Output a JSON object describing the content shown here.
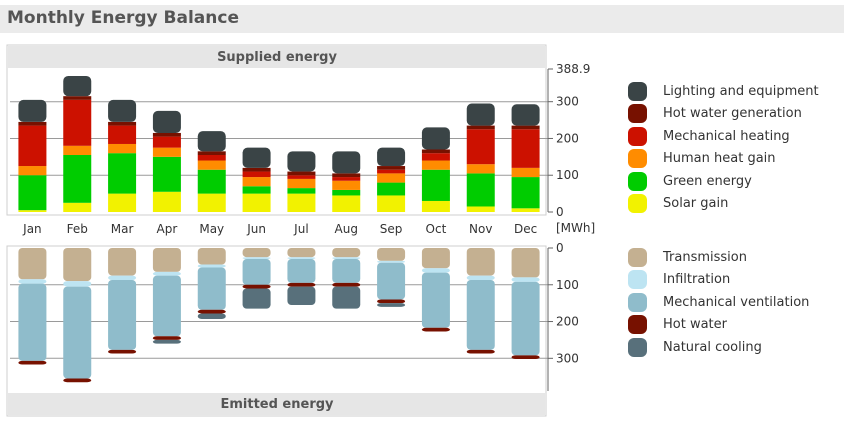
{
  "header": {
    "title": "Monthly Energy Balance"
  },
  "chart_data": {
    "type": "bar",
    "title": "Monthly Energy Balance",
    "top_panel_title": "Supplied energy",
    "bottom_panel_title": "Emitted energy",
    "unit": "[MWh]",
    "categories": [
      "Jan",
      "Feb",
      "Mar",
      "Apr",
      "May",
      "Jun",
      "Jul",
      "Aug",
      "Sep",
      "Oct",
      "Nov",
      "Dec"
    ],
    "supplied": {
      "ylim": [
        0,
        388.9
      ],
      "tick_labels": [
        "0",
        "100",
        "200",
        "300",
        "388.9"
      ],
      "series": [
        {
          "name": "Solar gain",
          "color": "#f2f200",
          "values": [
            5,
            25,
            50,
            55,
            50,
            50,
            50,
            45,
            45,
            30,
            15,
            10
          ]
        },
        {
          "name": "Green energy",
          "color": "#00cc00",
          "values": [
            95,
            130,
            110,
            95,
            65,
            20,
            15,
            15,
            35,
            85,
            90,
            85
          ]
        },
        {
          "name": "Human heat gain",
          "color": "#ff8c00",
          "values": [
            25,
            25,
            25,
            25,
            25,
            25,
            25,
            25,
            25,
            25,
            25,
            25
          ]
        },
        {
          "name": "Mechanical heating",
          "color": "#cc1100",
          "values": [
            110,
            125,
            50,
            30,
            15,
            15,
            10,
            10,
            10,
            20,
            95,
            105
          ]
        },
        {
          "name": "Hot water generation",
          "color": "#771100",
          "values": [
            10,
            10,
            10,
            10,
            10,
            10,
            10,
            10,
            10,
            10,
            10,
            10
          ]
        },
        {
          "name": "Lighting and equipment",
          "color": "#3a4446",
          "values": [
            60,
            55,
            60,
            60,
            55,
            55,
            55,
            60,
            50,
            60,
            60,
            58
          ]
        }
      ]
    },
    "emitted": {
      "ylim": [
        0,
        388.9
      ],
      "tick_labels": [
        "0",
        "100",
        "200",
        "300"
      ],
      "series": [
        {
          "name": "Transmission",
          "color": "#c4b091",
          "values": [
            85,
            90,
            75,
            65,
            45,
            25,
            25,
            25,
            35,
            55,
            75,
            80
          ]
        },
        {
          "name": "Infiltration",
          "color": "#bde4f2",
          "values": [
            12,
            15,
            12,
            10,
            8,
            5,
            5,
            5,
            5,
            12,
            12,
            12
          ]
        },
        {
          "name": "Mechanical ventilation",
          "color": "#8fbccb",
          "values": [
            210,
            250,
            190,
            165,
            115,
            70,
            65,
            65,
            100,
            150,
            190,
            200
          ]
        },
        {
          "name": "Hot water",
          "color": "#771100",
          "values": [
            10,
            10,
            10,
            10,
            10,
            10,
            10,
            10,
            10,
            10,
            10,
            10
          ]
        },
        {
          "name": "Natural cooling",
          "color": "#58707b",
          "values": [
            0,
            0,
            0,
            10,
            15,
            55,
            50,
            60,
            10,
            0,
            0,
            0
          ]
        }
      ]
    }
  }
}
